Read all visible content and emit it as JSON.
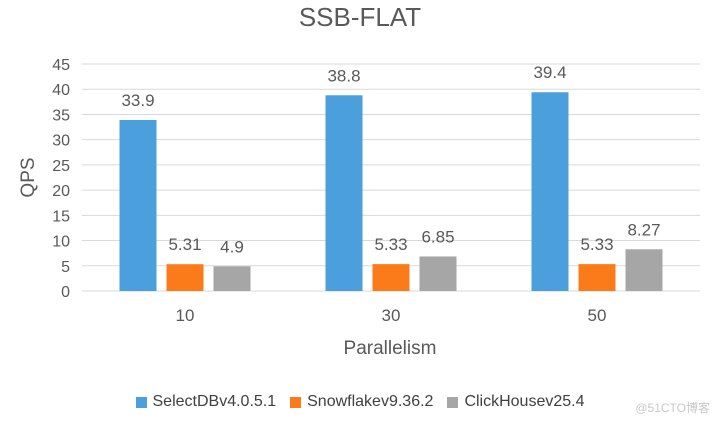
{
  "chart_data": {
    "type": "bar",
    "title": "SSB-FLAT",
    "xlabel": "Parallelism",
    "ylabel": "QPS",
    "categories": [
      "10",
      "30",
      "50"
    ],
    "ylim": [
      0,
      45
    ],
    "yticks": [
      0,
      5,
      10,
      15,
      20,
      25,
      30,
      35,
      40,
      45
    ],
    "grid": true,
    "legend_position": "bottom",
    "series": [
      {
        "name": "SelectDBv4.0.5.1",
        "values": [
          33.9,
          38.8,
          39.4
        ],
        "labels": [
          "33.9",
          "38.8",
          "39.4"
        ],
        "color": "#4a9fdc"
      },
      {
        "name": "Snowflakev9.36.2",
        "values": [
          5.31,
          5.33,
          5.33
        ],
        "labels": [
          "5.31",
          "5.33",
          "5.33"
        ],
        "color": "#fb7b1a"
      },
      {
        "name": "ClickHousev25.4",
        "values": [
          4.9,
          6.85,
          8.27
        ],
        "labels": [
          "4.9",
          "6.85",
          "8.27"
        ],
        "color": "#a6a6a6"
      }
    ]
  },
  "watermark": "@51CTO博客",
  "colors": {
    "grid": "#d9d9d9",
    "text": "#595959"
  }
}
